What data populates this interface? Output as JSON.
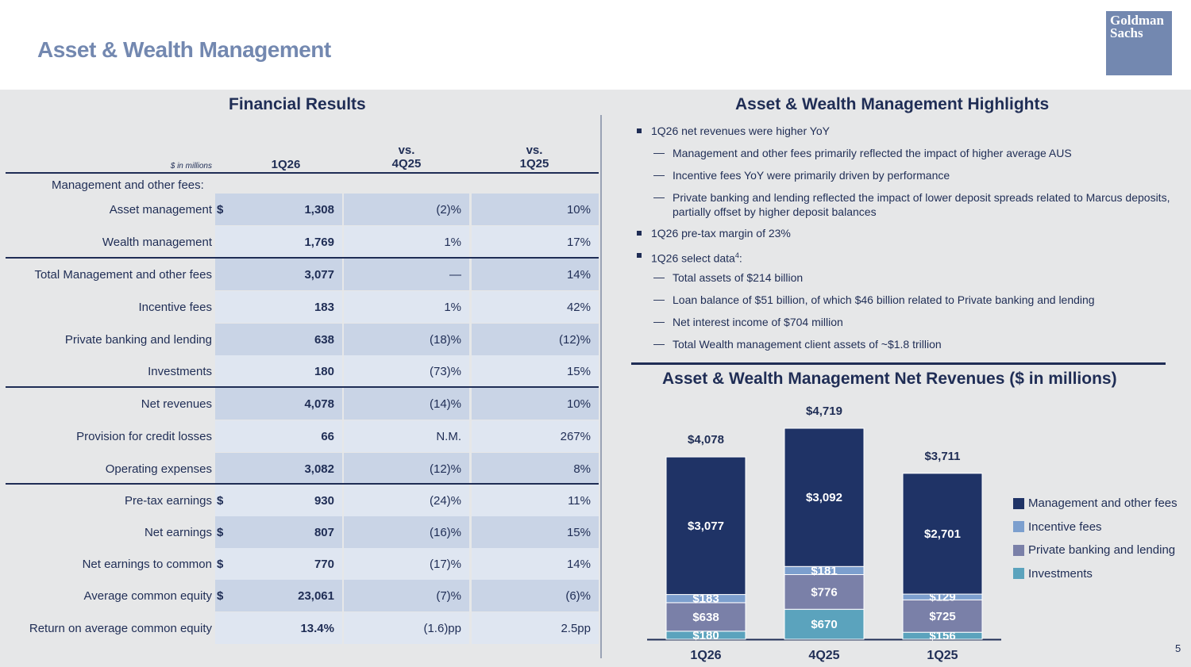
{
  "header": {
    "title": "Asset & Wealth Management",
    "logo_line1": "Goldman",
    "logo_line2": "Sachs",
    "page_number": "5"
  },
  "table": {
    "title": "Financial Results",
    "units": "$ in millions",
    "col1": "1Q26",
    "col2_line1": "vs.",
    "col2_line2": "4Q25",
    "col3_line1": "vs.",
    "col3_line2": "1Q25",
    "group_label": "Management and other fees:",
    "rows": [
      {
        "label": "Asset management",
        "dollar": "$",
        "v1": "1,308",
        "v2": "(2)%",
        "v3": "10%"
      },
      {
        "label": "Wealth management",
        "dollar": "",
        "v1": "1,769",
        "v2": "1%",
        "v3": "17%"
      },
      {
        "label": "Total Management and other fees",
        "dollar": "",
        "v1": "3,077",
        "v2": "—",
        "v3": "14%"
      },
      {
        "label": "Incentive fees",
        "dollar": "",
        "v1": "183",
        "v2": "1%",
        "v3": "42%"
      },
      {
        "label": "Private banking and lending",
        "dollar": "",
        "v1": "638",
        "v2": "(18)%",
        "v3": "(12)%"
      },
      {
        "label": "Investments",
        "dollar": "",
        "v1": "180",
        "v2": "(73)%",
        "v3": "15%"
      },
      {
        "label": "Net revenues",
        "dollar": "",
        "v1": "4,078",
        "v2": "(14)%",
        "v3": "10%"
      },
      {
        "label": "Provision for credit losses",
        "dollar": "",
        "v1": "66",
        "v2": "N.M.",
        "v3": "267%"
      },
      {
        "label": "Operating expenses",
        "dollar": "",
        "v1": "3,082",
        "v2": "(12)%",
        "v3": "8%"
      },
      {
        "label": "Pre-tax earnings",
        "dollar": "$",
        "v1": "930",
        "v2": "(24)%",
        "v3": "11%"
      },
      {
        "label": "Net earnings",
        "dollar": "$",
        "v1": "807",
        "v2": "(16)%",
        "v3": "15%"
      },
      {
        "label": "Net earnings to common",
        "dollar": "$",
        "v1": "770",
        "v2": "(17)%",
        "v3": "14%"
      },
      {
        "label": "Average common equity",
        "dollar": "$",
        "v1": "23,061",
        "v2": "(7)%",
        "v3": "(6)%"
      },
      {
        "label": "Return on average common equity",
        "dollar": "",
        "v1": "13.4%",
        "v2": "(1.6)pp",
        "v3": "2.5pp"
      }
    ]
  },
  "highlights": {
    "title": "Asset & Wealth Management Highlights",
    "b1": "1Q26 net revenues were higher YoY",
    "b1_s1": "Management and other fees primarily reflected the impact of higher average AUS",
    "b1_s2": "Incentive fees YoY were primarily driven by performance",
    "b1_s3": "Private banking and lending reflected the impact of lower deposit spreads related to Marcus deposits, partially offset by higher deposit balances",
    "b2": "1Q26 pre-tax margin of 23%",
    "b3": "1Q26 select data",
    "b3_sup": "4",
    "b3_colon": ":",
    "b3_s1": "Total assets of $214 billion",
    "b3_s2": "Loan balance of $51 billion, of which $46 billion related to Private banking and lending",
    "b3_s3": "Net interest income of $704 million",
    "b3_s4": "Total Wealth management client assets of ~$1.8 trillion",
    "dash": "—"
  },
  "chart_data": {
    "type": "bar",
    "stacked": true,
    "title": "Asset & Wealth Management Net Revenues ($ in millions)",
    "categories": [
      "1Q26",
      "4Q25",
      "1Q25"
    ],
    "totals": [
      4078,
      4719,
      3711
    ],
    "total_labels": [
      "$4,078",
      "$4,719",
      "$3,711"
    ],
    "series": [
      {
        "name": "Investments",
        "values": [
          180,
          670,
          156
        ],
        "labels": [
          "$180",
          "$670",
          "$156"
        ],
        "color": "#5ba3bd"
      },
      {
        "name": "Private banking and lending",
        "values": [
          638,
          776,
          725
        ],
        "labels": [
          "$638",
          "$776",
          "$725"
        ],
        "color": "#7a80a8"
      },
      {
        "name": "Incentive fees",
        "values": [
          183,
          181,
          129
        ],
        "labels": [
          "$183",
          "$181",
          "$129"
        ],
        "color": "#7c9fce"
      },
      {
        "name": "Management and other fees",
        "values": [
          3077,
          3092,
          2701
        ],
        "labels": [
          "$3,077",
          "$3,092",
          "$2,701"
        ],
        "color": "#1f3366"
      }
    ],
    "legend_order": [
      "Management and other fees",
      "Incentive fees",
      "Private banking and lending",
      "Investments"
    ],
    "legend_position": "right",
    "ylim": [
      0,
      4719
    ]
  }
}
